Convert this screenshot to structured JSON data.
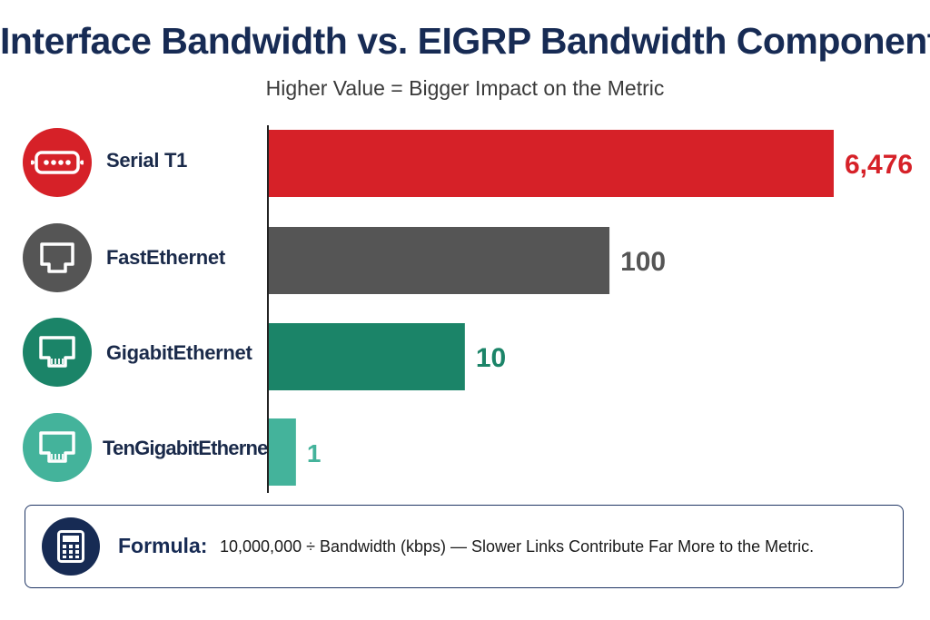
{
  "title": "Interface Bandwidth vs. EIGRP Bandwidth Component",
  "subtitle": "Higher Value = Bigger Impact on the Metric",
  "formula": {
    "label": "Formula:",
    "text": "10,000,000 ÷ Bandwidth (kbps) — Slower Links Contribute Far More to the Metric.",
    "icon": "calculator-icon"
  },
  "rows": [
    {
      "label": "Serial T1",
      "value_label": "6,476",
      "color": "#d62128",
      "icon": "serial-port-icon"
    },
    {
      "label": "FastEthernet",
      "value_label": "100",
      "color": "#555555",
      "icon": "ethernet-port-icon"
    },
    {
      "label": "GigabitEthernet",
      "value_label": "10",
      "color": "#1b8468",
      "icon": "ethernet-port-icon"
    },
    {
      "label": "TenGigabitEthernet",
      "value_label": "1",
      "color": "#44b39b",
      "icon": "ethernet-port-icon"
    }
  ],
  "chart_data": {
    "type": "bar",
    "orientation": "horizontal",
    "categories": [
      "Serial T1",
      "FastEthernet",
      "GigabitEthernet",
      "TenGigabitEthernet"
    ],
    "values": [
      6476,
      100,
      10,
      1
    ],
    "scale": "compressed (bar lengths not proportional to values)",
    "relative_lengths": [
      1.0,
      0.603,
      0.347,
      0.048
    ],
    "colors": [
      "#d62128",
      "#555555",
      "#1b8468",
      "#44b39b"
    ],
    "value_label_colors": [
      "#d62128",
      "#555555",
      "#1b8468",
      "#44b39b"
    ],
    "title": "Interface Bandwidth vs. EIGRP Bandwidth Component",
    "subtitle": "Higher Value = Bigger Impact on the Metric",
    "xlabel": "",
    "ylabel": "",
    "grid": false,
    "legend": "none"
  }
}
